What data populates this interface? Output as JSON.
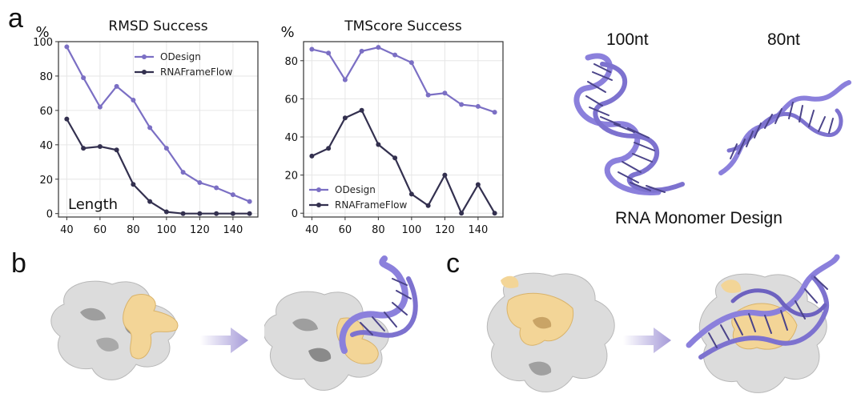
{
  "figure": {
    "panel_a_label": "a",
    "panel_b_label": "b",
    "panel_c_label": "c",
    "structure_labels": {
      "nt100": "100nt",
      "nt80": "80nt",
      "caption": "RNA Monomer Design"
    },
    "colors": {
      "odesign": "#7b6fc4",
      "rnaframeflow": "#33304f",
      "rna_ribbon": "#8b80dc",
      "rna_ribbon_dark": "#4b4489",
      "protein_surface": "#d9d9d9",
      "binding_site": "#f3d597",
      "arrow": "#a59ad8"
    }
  },
  "chart_data": [
    {
      "type": "line",
      "title": "RMSD Success",
      "ylabel": "%",
      "annotation": "Length",
      "x": [
        40,
        50,
        60,
        70,
        80,
        90,
        100,
        110,
        120,
        130,
        140,
        150
      ],
      "xlim": [
        35,
        155
      ],
      "xticks": [
        40,
        60,
        80,
        100,
        120,
        140
      ],
      "ylim": [
        -2,
        100
      ],
      "yticks": [
        0,
        20,
        40,
        60,
        80,
        100
      ],
      "grid": true,
      "legend_position": "top-right",
      "series": [
        {
          "name": "ODesign",
          "color": "#7b6fc4",
          "values": [
            97,
            79,
            62,
            74,
            66,
            50,
            38,
            24,
            18,
            15,
            11,
            7
          ]
        },
        {
          "name": "RNAFrameFlow",
          "color": "#33304f",
          "values": [
            55,
            38,
            39,
            37,
            17,
            7,
            1,
            0,
            0,
            0,
            0,
            0
          ]
        }
      ]
    },
    {
      "type": "line",
      "title": "TMScore Success",
      "ylabel": "%",
      "x": [
        40,
        50,
        60,
        70,
        80,
        90,
        100,
        110,
        120,
        130,
        140,
        150
      ],
      "xlim": [
        35,
        155
      ],
      "xticks": [
        40,
        60,
        80,
        100,
        120,
        140
      ],
      "ylim": [
        -2,
        90
      ],
      "yticks": [
        0,
        20,
        40,
        60,
        80
      ],
      "grid": true,
      "legend_position": "bottom-left",
      "series": [
        {
          "name": "ODesign",
          "color": "#7b6fc4",
          "values": [
            86,
            84,
            70,
            85,
            87,
            83,
            79,
            62,
            63,
            57,
            56,
            53
          ]
        },
        {
          "name": "RNAFrameFlow",
          "color": "#33304f",
          "values": [
            30,
            34,
            50,
            54,
            36,
            29,
            10,
            4,
            20,
            0,
            15,
            0
          ]
        }
      ]
    }
  ]
}
